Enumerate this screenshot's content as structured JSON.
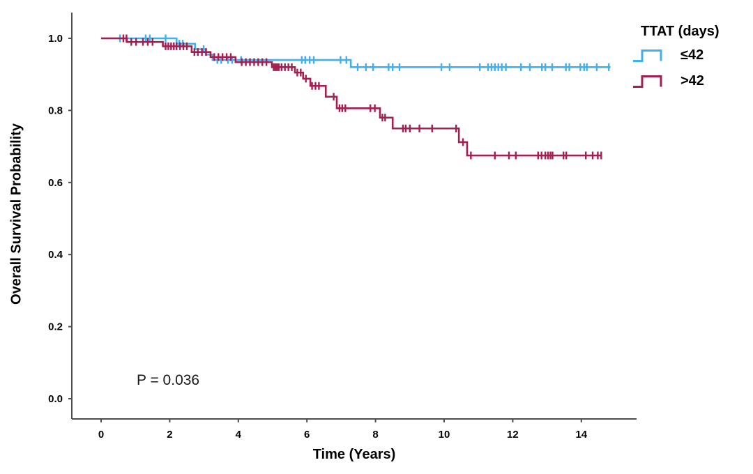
{
  "figure": {
    "p_value_label": "P = 0.036",
    "colors": {
      "axis": "#4d4d4d",
      "text": "#000000",
      "background": "#ffffff",
      "group_le42": "#3FB1F0",
      "group_gt42": "#A51E52"
    }
  },
  "chart_data": {
    "type": "line",
    "subtype": "kaplan_meier_step",
    "title": "",
    "xlabel": "Time (Years)",
    "ylabel": "Overall Survival Probability",
    "xlim": [
      0,
      15.6
    ],
    "ylim": [
      0,
      1.05
    ],
    "x_ticks": [
      0,
      2,
      4,
      6,
      8,
      10,
      12,
      14
    ],
    "y_tick_labels": [
      "1.0",
      "0.8",
      "0.6",
      "0.4",
      "0.2",
      "0.0"
    ],
    "grid": false,
    "annotation": "P = 0.036",
    "legend": {
      "title": "TTAT (days)",
      "position": "top-right"
    },
    "series": [
      {
        "name": "≤42",
        "color": "#3FB1F0",
        "start": [
          0,
          1.0
        ],
        "drops": [
          [
            2.2,
            0.985
          ],
          [
            2.74,
            0.97
          ],
          [
            3.05,
            0.955
          ],
          [
            3.25,
            0.94
          ],
          [
            7.28,
            0.92
          ]
        ],
        "end_x": 14.85,
        "final_probability": 0.92,
        "censor_x": [
          0.55,
          1.3,
          1.42,
          1.88,
          2.28,
          2.38,
          2.99,
          3.39,
          3.5,
          3.7,
          3.82,
          4.08,
          5.85,
          5.95,
          6.08,
          6.2,
          6.98,
          7.15,
          7.48,
          7.72,
          7.93,
          8.38,
          8.5,
          8.7,
          9.92,
          10.16,
          11.04,
          11.28,
          11.38,
          11.48,
          11.58,
          11.68,
          11.8,
          12.24,
          12.5,
          12.85,
          12.95,
          13.15,
          13.55,
          13.65,
          13.97,
          14.08,
          14.16,
          14.45,
          14.8
        ]
      },
      {
        "name": ">42",
        "color": "#A51E52",
        "start": [
          0,
          1.0
        ],
        "drops": [
          [
            0.75,
            0.99
          ],
          [
            1.8,
            0.978
          ],
          [
            2.64,
            0.962
          ],
          [
            3.19,
            0.948
          ],
          [
            3.92,
            0.934
          ],
          [
            4.98,
            0.92
          ],
          [
            5.65,
            0.905
          ],
          [
            5.89,
            0.888
          ],
          [
            6.1,
            0.868
          ],
          [
            6.55,
            0.838
          ],
          [
            6.87,
            0.806
          ],
          [
            8.13,
            0.78
          ],
          [
            8.5,
            0.75
          ],
          [
            10.43,
            0.712
          ],
          [
            10.67,
            0.675
          ]
        ],
        "end_x": 14.6,
        "final_probability": 0.675,
        "censor_x": [
          0.65,
          0.74,
          0.88,
          1.02,
          1.22,
          1.36,
          1.5,
          1.88,
          1.96,
          2.04,
          2.12,
          2.2,
          2.3,
          2.4,
          2.5,
          2.72,
          2.82,
          2.94,
          3.06,
          3.3,
          3.42,
          3.54,
          3.66,
          3.78,
          4.1,
          4.22,
          4.34,
          4.46,
          4.58,
          4.7,
          4.82,
          5.03,
          5.08,
          5.13,
          5.18,
          5.26,
          5.36,
          5.46,
          5.56,
          5.72,
          5.82,
          5.97,
          6.15,
          6.25,
          6.35,
          6.78,
          6.95,
          7.03,
          7.12,
          7.85,
          7.98,
          8.2,
          8.28,
          8.8,
          8.88,
          9.0,
          9.28,
          9.65,
          10.35,
          10.55,
          10.78,
          11.48,
          11.89,
          12.09,
          12.74,
          12.84,
          12.95,
          13.03,
          13.1,
          13.16,
          13.48,
          13.56,
          14.13,
          14.33,
          14.48,
          14.58
        ]
      }
    ]
  }
}
